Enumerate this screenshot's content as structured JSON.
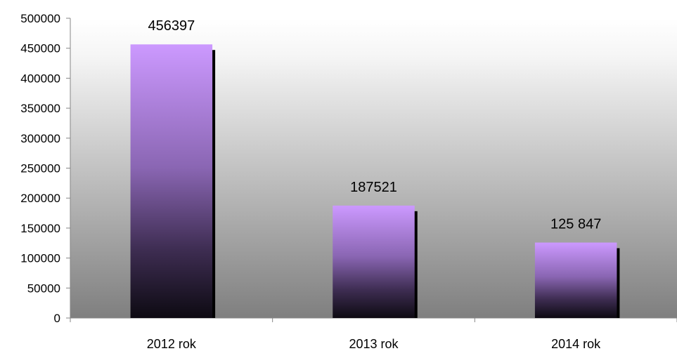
{
  "chart_data": {
    "type": "bar",
    "categories": [
      "2012 rok",
      "2013 rok",
      "2014 rok"
    ],
    "values": [
      456397,
      187521,
      125847
    ],
    "data_labels": [
      "456397",
      "187521",
      "125 847"
    ],
    "ylim": [
      0,
      500000
    ],
    "y_ticks": [
      0,
      50000,
      100000,
      150000,
      200000,
      250000,
      300000,
      350000,
      400000,
      450000,
      500000
    ],
    "y_tick_labels": [
      "0",
      "50000",
      "100000",
      "150000",
      "200000",
      "250000",
      "300000",
      "350000",
      "400000",
      "450000",
      "500000"
    ],
    "grid": false,
    "legend": "none",
    "colors": {
      "bar_top": "#cc99ff",
      "bar_mid": "#7a5a9e",
      "bar_bottom": "#0d0a12",
      "bar_shadow": "#000000",
      "plot_bg_top": "#ffffff",
      "plot_bg_bottom": "#7f7f7f",
      "axis": "#868686"
    }
  }
}
